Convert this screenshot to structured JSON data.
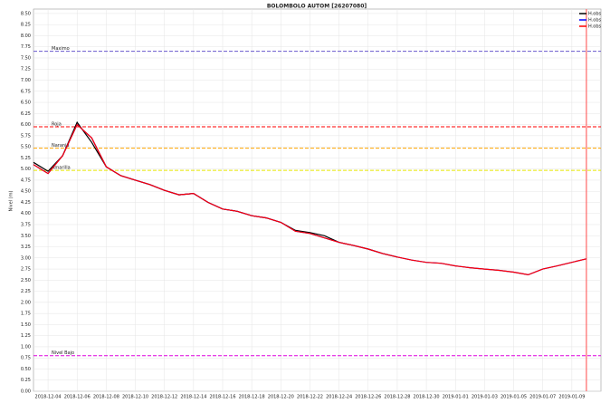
{
  "chart_data": {
    "type": "line",
    "title": "BOLOMBOLO AUTOM   [26207080]",
    "ylabel": "Nivel (m)",
    "x": [
      "2018-12-03",
      "2018-12-04",
      "2018-12-05",
      "2018-12-06",
      "2018-12-07",
      "2018-12-08",
      "2018-12-09",
      "2018-12-10",
      "2018-12-11",
      "2018-12-12",
      "2018-12-13",
      "2018-12-14",
      "2018-12-15",
      "2018-12-16",
      "2018-12-17",
      "2018-12-18",
      "2018-12-19",
      "2018-12-20",
      "2018-12-21",
      "2018-12-22",
      "2018-12-23",
      "2018-12-24",
      "2018-12-25",
      "2018-12-26",
      "2018-12-27",
      "2018-12-28",
      "2018-12-29",
      "2018-12-30",
      "2018-12-31",
      "2019-01-01",
      "2019-01-02",
      "2019-01-03",
      "2019-01-04",
      "2019-01-05",
      "2019-01-06",
      "2019-01-07",
      "2019-01-08",
      "2019-01-09",
      "2019-01-10"
    ],
    "series": [
      {
        "name": "H.obs",
        "color": "#000000",
        "values": [
          5.15,
          4.95,
          5.3,
          6.05,
          5.6,
          5.05,
          4.85,
          4.75,
          4.65,
          4.52,
          4.42,
          4.45,
          4.25,
          4.1,
          4.05,
          3.95,
          3.9,
          3.8,
          3.62,
          3.57,
          3.5,
          3.35,
          3.28,
          3.2,
          3.1,
          3.02,
          null,
          null,
          null,
          null,
          null,
          null,
          null,
          null,
          null,
          null,
          null,
          null,
          null
        ]
      },
      {
        "name": "H.obs",
        "color": "#0000ff",
        "values": [
          5.1,
          4.9,
          5.3,
          6.0,
          5.7,
          5.05,
          4.85,
          4.75,
          4.65,
          4.52,
          4.42,
          4.45,
          4.25,
          4.1,
          4.05,
          3.95,
          3.9,
          3.8,
          3.6,
          3.55,
          3.45,
          3.35,
          3.28,
          3.2,
          3.1,
          3.02,
          2.95,
          2.9,
          2.88,
          2.82,
          2.78,
          2.75,
          2.72,
          2.68,
          2.62,
          2.75,
          2.82,
          2.9,
          2.98
        ]
      },
      {
        "name": "H.obs",
        "color": "#ff0000",
        "values": [
          5.1,
          4.9,
          5.3,
          6.0,
          5.7,
          5.05,
          4.85,
          4.75,
          4.65,
          4.52,
          4.42,
          4.45,
          4.25,
          4.1,
          4.05,
          3.95,
          3.9,
          3.8,
          3.6,
          3.55,
          3.45,
          3.35,
          3.28,
          3.2,
          3.1,
          3.02,
          2.95,
          2.9,
          2.88,
          2.82,
          2.78,
          2.75,
          2.72,
          2.68,
          2.62,
          2.75,
          2.82,
          2.9,
          2.98
        ]
      }
    ],
    "thresholds": [
      {
        "label": "Maximo",
        "value": 7.65,
        "color": "#6a5acd"
      },
      {
        "label": "Roja",
        "value": 5.95,
        "color": "#ff0000"
      },
      {
        "label": "Naranja",
        "value": 5.47,
        "color": "#ffa500"
      },
      {
        "label": "Amarilla",
        "value": 4.97,
        "color": "#e6e600"
      },
      {
        "label": "Nivel Bajo",
        "value": 0.8,
        "color": "#dd00dd"
      }
    ],
    "vline": {
      "x": "2019-01-10",
      "color": "#ff6666"
    },
    "xlim": [
      "2018-12-03",
      "2019-01-11"
    ],
    "xticks": [
      "2018-12-04",
      "2018-12-06",
      "2018-12-08",
      "2018-12-10",
      "2018-12-12",
      "2018-12-14",
      "2018-12-16",
      "2018-12-18",
      "2018-12-20",
      "2018-12-22",
      "2018-12-24",
      "2018-12-26",
      "2018-12-28",
      "2018-12-30",
      "2019-01-01",
      "2019-01-03",
      "2019-01-05",
      "2019-01-07",
      "2019-01-09"
    ],
    "ylim": [
      0,
      8.6
    ],
    "yticks": [
      {
        "value": 0,
        "label": "0.00"
      },
      {
        "value": 0.25,
        "label": "0.25"
      },
      {
        "value": 0.5,
        "label": "0.50"
      },
      {
        "value": 0.75,
        "label": "0.75"
      },
      {
        "value": 1,
        "label": "1.00"
      },
      {
        "value": 1.25,
        "label": "1.25"
      },
      {
        "value": 1.5,
        "label": "1.50"
      },
      {
        "value": 1.75,
        "label": "1.75"
      },
      {
        "value": 2,
        "label": "2.00"
      },
      {
        "value": 2.25,
        "label": "2.25"
      },
      {
        "value": 2.5,
        "label": "2.50"
      },
      {
        "value": 2.75,
        "label": "2.75"
      },
      {
        "value": 3,
        "label": "3.00"
      },
      {
        "value": 3.25,
        "label": "3.25"
      },
      {
        "value": 3.5,
        "label": "3.50"
      },
      {
        "value": 3.75,
        "label": "3.75"
      },
      {
        "value": 4,
        "label": "4.00"
      },
      {
        "value": 4.25,
        "label": "4.25"
      },
      {
        "value": 4.5,
        "label": "4.50"
      },
      {
        "value": 4.75,
        "label": "4.75"
      },
      {
        "value": 5,
        "label": "5.00"
      },
      {
        "value": 5.25,
        "label": "5.25"
      },
      {
        "value": 5.5,
        "label": "5.50"
      },
      {
        "value": 5.75,
        "label": "5.75"
      },
      {
        "value": 6,
        "label": "6.00"
      },
      {
        "value": 6.25,
        "label": "6.25"
      },
      {
        "value": 6.5,
        "label": "6.50"
      },
      {
        "value": 6.75,
        "label": "6.75"
      },
      {
        "value": 7,
        "label": "7.00"
      },
      {
        "value": 7.25,
        "label": "7.25"
      },
      {
        "value": 7.5,
        "label": "7.50"
      },
      {
        "value": 7.75,
        "label": "7.75"
      },
      {
        "value": 8,
        "label": "8.00"
      },
      {
        "value": 8.25,
        "label": "8.25"
      },
      {
        "value": 8.5,
        "label": "8.50"
      }
    ],
    "grid": true,
    "legend": "upper right"
  }
}
